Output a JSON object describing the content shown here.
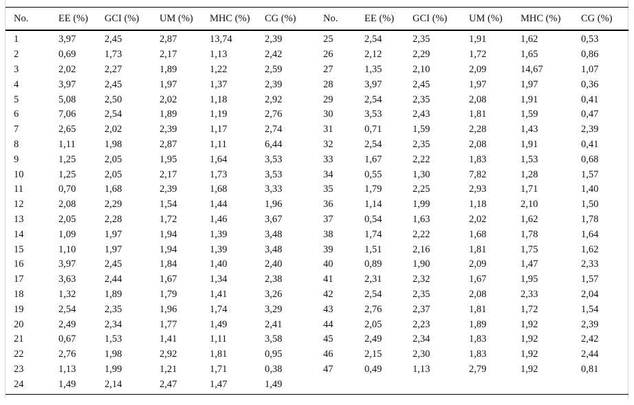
{
  "table": {
    "headers": [
      "No.",
      "EE (%)",
      "GCI (%)",
      "UM (%)",
      "MHC (%)",
      "CG (%)",
      "No.",
      "EE (%)",
      "GCI (%)",
      "UM (%)",
      "MHC (%)",
      "CG (%)"
    ],
    "rows": [
      [
        "1",
        "3,97",
        "2,45",
        "2,87",
        "13,74",
        "2,39",
        "25",
        "2,54",
        "2,35",
        "1,91",
        "1,62",
        "0,53"
      ],
      [
        "2",
        "0,69",
        "1,73",
        "2,17",
        "1,13",
        "2,42",
        "26",
        "2,12",
        "2,29",
        "1,72",
        "1,65",
        "0,86"
      ],
      [
        "3",
        "2,02",
        "2,27",
        "1,89",
        "1,22",
        "2,59",
        "27",
        "1,35",
        "2,10",
        "2,09",
        "14,67",
        "1,07"
      ],
      [
        "4",
        "3,97",
        "2,45",
        "1,97",
        "1,37",
        "2,39",
        "28",
        "3,97",
        "2,45",
        "1,97",
        "1,97",
        "0,36"
      ],
      [
        "5",
        "5,08",
        "2,50",
        "2,02",
        "1,18",
        "2,92",
        "29",
        "2,54",
        "2,35",
        "2,08",
        "1,91",
        "0,41"
      ],
      [
        "6",
        "7,06",
        "2,54",
        "1,89",
        "1,19",
        "2,76",
        "30",
        "3,53",
        "2,43",
        "1,81",
        "1,59",
        "0,47"
      ],
      [
        "7",
        "2,65",
        "2,02",
        "2,39",
        "1,17",
        "2,74",
        "31",
        "0,71",
        "1,59",
        "2,28",
        "1,43",
        "2,39"
      ],
      [
        "8",
        "1,11",
        "1,98",
        "2,87",
        "1,11",
        "6,44",
        "32",
        "2,54",
        "2,35",
        "2,08",
        "1,91",
        "0,41"
      ],
      [
        "9",
        "1,25",
        "2,05",
        "1,95",
        "1,64",
        "3,53",
        "33",
        "1,67",
        "2,22",
        "1,83",
        "1,53",
        "0,68"
      ],
      [
        "10",
        "1,25",
        "2,05",
        "2,17",
        "1,73",
        "3,53",
        "34",
        "0,55",
        "1,30",
        "7,82",
        "1,28",
        "1,57"
      ],
      [
        "11",
        "0,70",
        "1,68",
        "2,39",
        "1,68",
        "3,33",
        "35",
        "1,79",
        "2,25",
        "2,93",
        "1,71",
        "1,40"
      ],
      [
        "12",
        "2,08",
        "2,29",
        "1,54",
        "1,44",
        "1,96",
        "36",
        "1,14",
        "1,99",
        "1,18",
        "2,10",
        "1,50"
      ],
      [
        "13",
        "2,05",
        "2,28",
        "1,72",
        "1,46",
        "3,67",
        "37",
        "0,54",
        "1,63",
        "2,02",
        "1,62",
        "1,78"
      ],
      [
        "14",
        "1,09",
        "1,97",
        "1,94",
        "1,39",
        "3,48",
        "38",
        "1,74",
        "2,22",
        "1,68",
        "1,78",
        "1,64"
      ],
      [
        "15",
        "1,10",
        "1,97",
        "1,94",
        "1,39",
        "3,48",
        "39",
        "1,51",
        "2,16",
        "1,81",
        "1,75",
        "1,62"
      ],
      [
        "16",
        "3,97",
        "2,45",
        "1,84",
        "1,40",
        "2,40",
        "40",
        "0,89",
        "1,90",
        "2,09",
        "1,47",
        "2,33"
      ],
      [
        "17",
        "3,63",
        "2,44",
        "1,67",
        "1,34",
        "2,38",
        "41",
        "2,31",
        "2,32",
        "1,67",
        "1,95",
        "1,57"
      ],
      [
        "18",
        "1,32",
        "1,89",
        "1,79",
        "1,41",
        "3,26",
        "42",
        "2,54",
        "2,35",
        "2,08",
        "2,33",
        "2,04"
      ],
      [
        "19",
        "2,54",
        "2,35",
        "1,96",
        "1,74",
        "3,29",
        "43",
        "2,76",
        "2,37",
        "1,81",
        "1,72",
        "1,54"
      ],
      [
        "20",
        "2,49",
        "2,34",
        "1,77",
        "1,49",
        "2,41",
        "44",
        "2,05",
        "2,23",
        "1,89",
        "1,92",
        "2,39"
      ],
      [
        "21",
        "0,67",
        "1,53",
        "1,41",
        "1,11",
        "3,58",
        "45",
        "2,49",
        "2,34",
        "1,83",
        "1,92",
        "2,42"
      ],
      [
        "22",
        "2,76",
        "1,98",
        "2,92",
        "1,81",
        "0,95",
        "46",
        "2,15",
        "2,30",
        "1,83",
        "1,92",
        "2,44"
      ],
      [
        "23",
        "1,13",
        "1,99",
        "1,21",
        "1,71",
        "0,38",
        "47",
        "0,49",
        "1,13",
        "2,79",
        "1,92",
        "0,81"
      ],
      [
        "24",
        "1,49",
        "2,14",
        "2,47",
        "1,47",
        "1,49",
        "",
        "",
        "",
        "",
        "",
        ""
      ]
    ]
  }
}
